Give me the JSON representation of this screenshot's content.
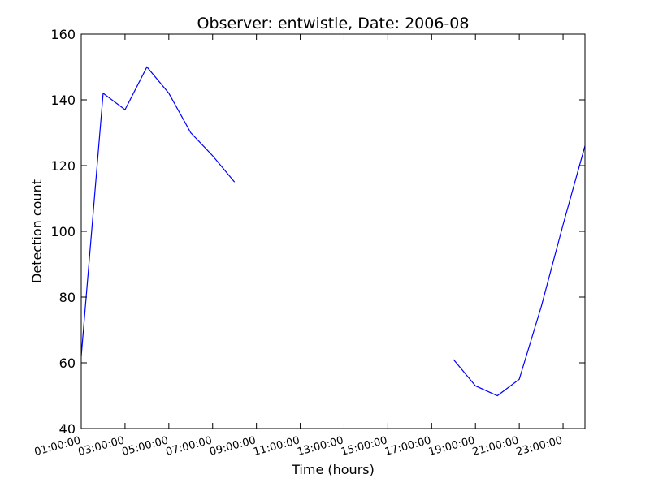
{
  "chart_data": {
    "type": "line",
    "title": "Observer: entwistle, Date: 2006-08",
    "xlabel": "Time (hours)",
    "ylabel": "Detection count",
    "ylim": [
      40,
      160
    ],
    "xlim": [
      "01:00:00",
      "24:00:00"
    ],
    "yticks": [
      "40",
      "60",
      "80",
      "100",
      "120",
      "140",
      "160"
    ],
    "xticks": [
      "01:00:00",
      "03:00:00",
      "05:00:00",
      "07:00:00",
      "09:00:00",
      "11:00:00",
      "13:00:00",
      "15:00:00",
      "17:00:00",
      "19:00:00",
      "21:00:00",
      "23:00:00"
    ],
    "grid": false,
    "series_color": "#0000ff",
    "series": [
      {
        "segments": [
          {
            "x": [
              "01:00:00",
              "02:00:00",
              "03:00:00",
              "04:00:00",
              "05:00:00",
              "06:00:00",
              "07:00:00",
              "08:00:00"
            ],
            "y": [
              62,
              142,
              137,
              150,
              142,
              130,
              123,
              115
            ]
          },
          {
            "x": [
              "18:00:00",
              "19:00:00",
              "20:00:00",
              "21:00:00",
              "22:00:00",
              "23:00:00",
              "24:00:00"
            ],
            "y": [
              61,
              53,
              50,
              55,
              77,
              102,
              126
            ]
          }
        ]
      }
    ]
  }
}
